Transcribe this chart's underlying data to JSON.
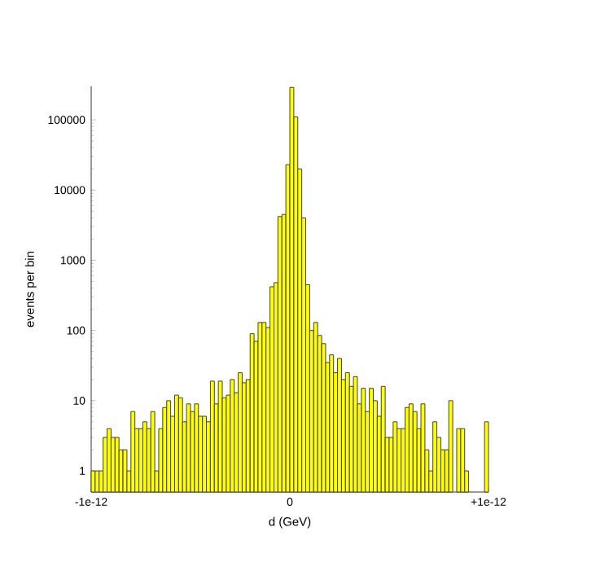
{
  "chart_data": {
    "type": "histogram",
    "xlabel": "d   (GeV)",
    "ylabel": "events per bin",
    "color": "#ffff00",
    "log": true,
    "bins": [
      -1e-12,
      -9.8e-13,
      -9.6e-13,
      -9.4e-13,
      -9.2e-13,
      -9e-13,
      -8.8e-13,
      -8.6e-13,
      -8.4e-13,
      -8.2e-13,
      -8e-13,
      -7.8e-13,
      -7.6e-13,
      -7.4e-13,
      -7.2e-13,
      -7e-13,
      -6.8e-13,
      -6.6e-13,
      -6.4e-13,
      -6.2e-13,
      -6e-13,
      -5.8e-13,
      -5.6e-13,
      -5.4e-13,
      -5.2e-13,
      -5e-13,
      -4.8e-13,
      -4.6e-13,
      -4.4e-13,
      -4.2e-13,
      -4e-13,
      -3.8e-13,
      -3.6e-13,
      -3.4e-13,
      -3.2e-13,
      -3e-13,
      -2.8e-13,
      -2.6e-13,
      -2.4e-13,
      -2.2e-13,
      -2e-13,
      -1.8e-13,
      -1.6e-13,
      -1.4e-13,
      -1.2e-13,
      -1e-13,
      -8e-14,
      -6e-14,
      -4e-14,
      -2e-14,
      0,
      2e-14,
      4e-14,
      6e-14,
      8e-14,
      1e-13,
      1.2e-13,
      1.4e-13,
      1.6e-13,
      1.8e-13,
      2e-13,
      2.2e-13,
      2.4e-13,
      2.6e-13,
      2.8e-13,
      3e-13,
      3.2e-13,
      3.4e-13,
      3.6e-13,
      3.8e-13,
      4e-13,
      4.2e-13,
      4.4e-13,
      4.6e-13,
      4.8e-13,
      5e-13,
      5.2e-13,
      5.4e-13,
      5.6e-13,
      5.8e-13,
      6e-13,
      6.2e-13,
      6.4e-13,
      6.6e-13,
      6.8e-13,
      7e-13,
      7.2e-13,
      7.4e-13,
      7.6e-13,
      7.8e-13,
      8e-13,
      8.2e-13,
      8.4e-13,
      8.6e-13,
      8.8e-13,
      9e-13,
      9.2e-13,
      9.4e-13,
      9.6e-13,
      9.8e-13,
      1e-12
    ],
    "values": [
      1,
      1,
      1,
      3,
      4,
      3,
      3,
      2,
      2,
      1,
      7,
      4,
      4,
      5,
      4,
      7,
      1,
      4,
      8,
      10,
      6,
      12,
      11,
      5,
      9,
      7,
      9,
      6,
      6,
      5,
      19,
      9,
      19,
      11,
      12,
      20,
      13,
      25,
      18,
      20,
      90,
      70,
      130,
      130,
      110,
      420,
      480,
      4200,
      4500,
      23000,
      290000,
      110000,
      20000,
      4000,
      450,
      100,
      130,
      85,
      65,
      35,
      45,
      25,
      40,
      20,
      25,
      16,
      22,
      9,
      15,
      7,
      15,
      10,
      6,
      16,
      3,
      3,
      5,
      4,
      4,
      8,
      9,
      7,
      4,
      9,
      2,
      1,
      5,
      3,
      2,
      2,
      10,
      null,
      4,
      4,
      1,
      null,
      null,
      null,
      null,
      5
    ],
    "xlim": [
      -1e-12,
      1e-12
    ],
    "xticks": [
      {
        "value": -1e-12,
        "label": "-1e-12"
      },
      0,
      {
        "value": 1e-12,
        "label": "+1e-12"
      }
    ],
    "ylim": [
      0.5,
      300000
    ],
    "yticks": [
      1,
      10,
      100,
      1000,
      10000,
      100000
    ]
  }
}
